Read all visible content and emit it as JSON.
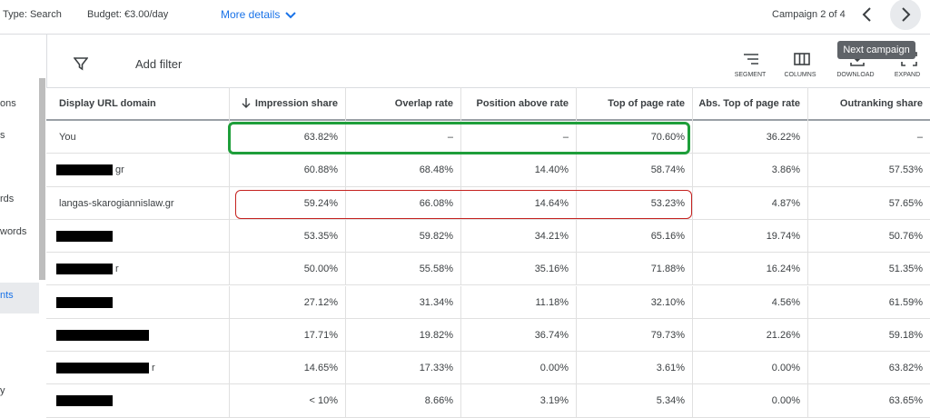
{
  "top_bar": {
    "type": "Type: Search",
    "budget": "Budget: €3.00/day",
    "more_details": "More details",
    "campaign": "Campaign 2 of 4",
    "tooltip": "Next campaign"
  },
  "sidebar": {
    "items": [
      "ons",
      "s",
      "rds",
      "words",
      "nts",
      "y"
    ]
  },
  "toolbar": {
    "add_filter": "Add filter",
    "buttons": [
      "SEGMENT",
      "COLUMNS",
      "DOWNLOAD",
      "EXPAND"
    ]
  },
  "table": {
    "columns": [
      "Display URL domain",
      "Impression share",
      "Overlap rate",
      "Position above rate",
      "Top of page rate",
      "Abs. Top of page rate",
      "Outranking share"
    ],
    "rows": [
      [
        "You",
        "63.82%",
        "–",
        "–",
        "70.60%",
        "36.22%",
        "–"
      ],
      [
        "gr",
        "60.88%",
        "68.48%",
        "14.40%",
        "58.74%",
        "3.86%",
        "57.53%"
      ],
      [
        "langas-skarogiannislaw.gr",
        "59.24%",
        "66.08%",
        "14.64%",
        "53.23%",
        "4.87%",
        "57.65%"
      ],
      [
        null,
        "53.35%",
        "59.82%",
        "34.21%",
        "65.16%",
        "19.74%",
        "50.76%"
      ],
      [
        "r",
        "50.00%",
        "55.58%",
        "35.16%",
        "71.88%",
        "16.24%",
        "51.35%"
      ],
      [
        null,
        "27.12%",
        "31.34%",
        "11.18%",
        "32.10%",
        "4.56%",
        "61.59%"
      ],
      [
        null,
        "17.71%",
        "19.82%",
        "36.74%",
        "79.73%",
        "21.26%",
        "59.18%"
      ],
      [
        "r",
        "14.65%",
        "17.33%",
        "0.00%",
        "3.61%",
        "0.00%",
        "63.82%"
      ],
      [
        null,
        "< 10%",
        "8.66%",
        "3.19%",
        "5.34%",
        "0.00%",
        "63.65%"
      ]
    ]
  }
}
